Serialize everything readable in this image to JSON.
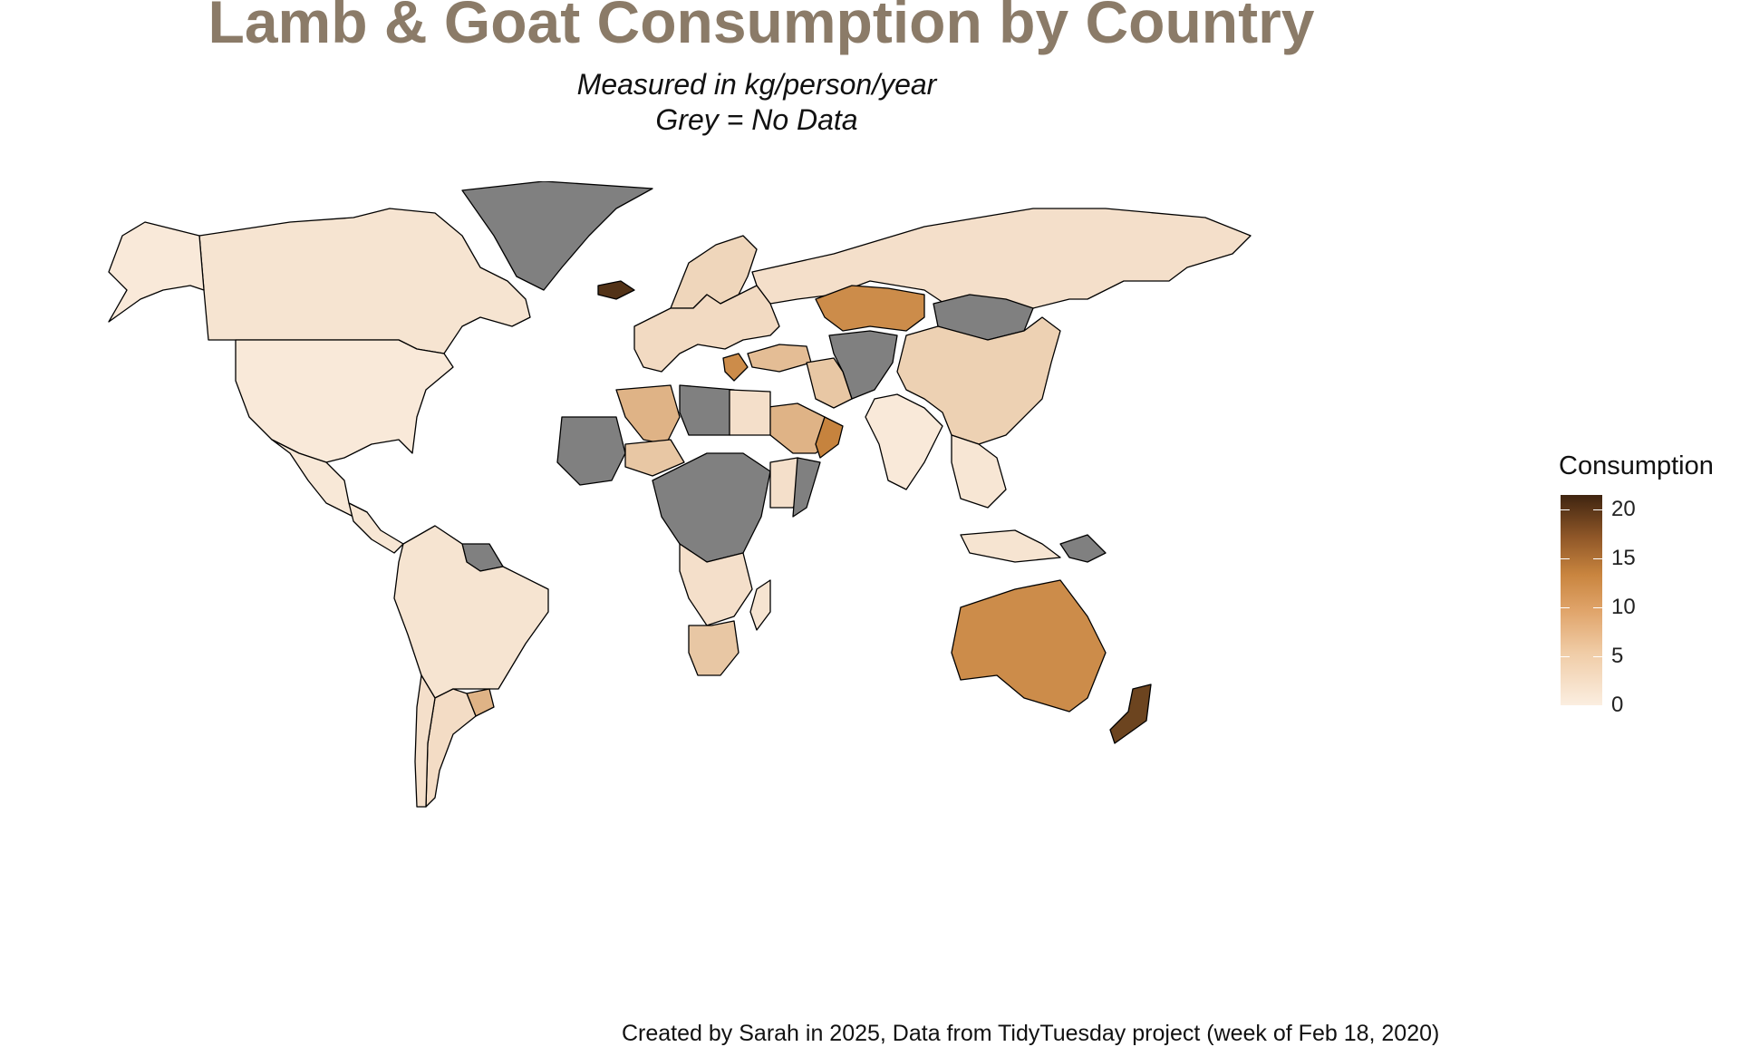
{
  "title": "Lamb & Goat Consumption by Country",
  "subtitle": [
    "Measured in kg/person/year",
    "Grey = No Data"
  ],
  "legend": {
    "title": "Consumption",
    "ticks": [
      "0",
      "5",
      "10",
      "15",
      "20"
    ],
    "range": [
      0,
      21.5
    ],
    "colors": {
      "low": "#fbeee0",
      "mid": "#c9853f",
      "high": "#3f2410"
    },
    "placement": "right"
  },
  "no_data_color": "#808080",
  "caption": "Created by Sarah in 2025, Data from TidyTuesday project (week of Feb 18, 2020)",
  "regions": [
    {
      "name": "Canada",
      "value": 1.0
    },
    {
      "name": "USA",
      "value": 0.5
    },
    {
      "name": "Alaska",
      "value": 0.5
    },
    {
      "name": "Greenland",
      "value": null
    },
    {
      "name": "Iceland",
      "value": 20.0
    },
    {
      "name": "Mexico",
      "value": 0.6
    },
    {
      "name": "Central America",
      "value": 0.8
    },
    {
      "name": "Guyana",
      "value": null
    },
    {
      "name": "South America",
      "value": 1.0
    },
    {
      "name": "Uruguay",
      "value": 6.0
    },
    {
      "name": "Argentina",
      "value": 1.8
    },
    {
      "name": "Chile",
      "value": 1.5
    },
    {
      "name": "Russia",
      "value": 1.5
    },
    {
      "name": "Scandinavia",
      "value": 2.5
    },
    {
      "name": "Europe",
      "value": 2.0
    },
    {
      "name": "Greece",
      "value": 10.0
    },
    {
      "name": "Turkey",
      "value": 5.0
    },
    {
      "name": "Kazakhstan",
      "value": 10.0
    },
    {
      "name": "Mongolia",
      "value": null
    },
    {
      "name": "Central Asia",
      "value": null
    },
    {
      "name": "Iran",
      "value": 4.0
    },
    {
      "name": "China",
      "value": 3.0
    },
    {
      "name": "India",
      "value": 0.5
    },
    {
      "name": "Southeast Asia",
      "value": 0.8
    },
    {
      "name": "Saudi Arabia",
      "value": 6.0
    },
    {
      "name": "Oman",
      "value": 11.0
    },
    {
      "name": "Algeria",
      "value": 6.0
    },
    {
      "name": "Libya",
      "value": null
    },
    {
      "name": "Egypt",
      "value": 1.5
    },
    {
      "name": "West Africa",
      "value": null
    },
    {
      "name": "Niger",
      "value": 4.0
    },
    {
      "name": "Central Africa",
      "value": null
    },
    {
      "name": "Ethiopia",
      "value": 1.5
    },
    {
      "name": "Somalia",
      "value": null
    },
    {
      "name": "Southern Africa",
      "value": 1.5
    },
    {
      "name": "South Africa",
      "value": 4.0
    },
    {
      "name": "Madagascar",
      "value": 1.0
    },
    {
      "name": "Indonesia",
      "value": 1.0
    },
    {
      "name": "Papua New Guinea",
      "value": null
    },
    {
      "name": "Australia",
      "value": 10.0
    },
    {
      "name": "New Zealand",
      "value": 18.0
    }
  ]
}
